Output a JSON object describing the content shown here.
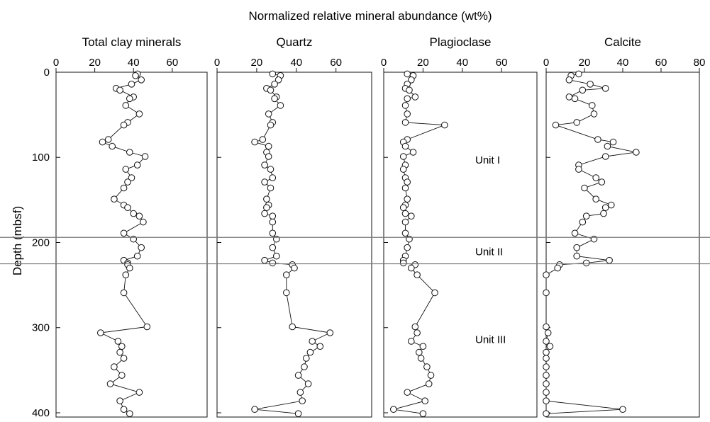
{
  "chart_data": {
    "type": "scatter",
    "title": "Normalized relative mineral abundance (wt%)",
    "ylabel": "Depth (mbsf)",
    "ylim": [
      0,
      405
    ],
    "y_ticks": [
      "0",
      "100",
      "200",
      "300",
      "400"
    ],
    "y_tick_values": [
      0,
      100,
      200,
      300,
      400
    ],
    "unit_boundaries": [
      194,
      225
    ],
    "unit_labels": [
      {
        "text": "Unit I",
        "depth": 103
      },
      {
        "text": "Unit II",
        "depth": 211
      },
      {
        "text": "Unit III",
        "depth": 314
      }
    ],
    "panels": [
      {
        "name": "Total clay minerals",
        "xlim": [
          0,
          78
        ],
        "x_ticks": [
          "0",
          "20",
          "40",
          "60"
        ],
        "x_tick_values": [
          0,
          20,
          40,
          60
        ],
        "depth": [
          2,
          4,
          9,
          14,
          19,
          21,
          29,
          31,
          39,
          49,
          59,
          62,
          79,
          82,
          87,
          94,
          99,
          109,
          114,
          124,
          129,
          136,
          149,
          156,
          159,
          166,
          169,
          176,
          189,
          196,
          206,
          216,
          221,
          224,
          226,
          230,
          238,
          259,
          299,
          306,
          316,
          322,
          329,
          336,
          346,
          356,
          366,
          376,
          386,
          396,
          401
        ],
        "values": [
          42,
          41,
          44,
          39,
          31,
          33,
          40,
          38,
          36,
          43,
          37,
          35,
          27,
          24,
          29,
          38,
          46,
          42,
          36,
          39,
          37,
          35,
          30,
          35,
          37,
          40,
          43,
          45,
          35,
          40,
          44,
          42,
          35,
          37,
          37,
          38,
          36,
          35,
          47,
          23,
          32,
          34,
          33,
          35,
          30,
          34,
          28,
          43,
          33,
          35,
          38
        ]
      },
      {
        "name": "Quartz",
        "xlim": [
          0,
          78
        ],
        "x_ticks": [
          "0",
          "20",
          "40",
          "60"
        ],
        "x_tick_values": [
          0,
          20,
          40,
          60
        ],
        "depth": [
          2,
          4,
          9,
          14,
          19,
          21,
          29,
          31,
          39,
          49,
          59,
          62,
          79,
          82,
          87,
          94,
          99,
          109,
          114,
          124,
          129,
          136,
          149,
          156,
          159,
          166,
          169,
          176,
          189,
          196,
          206,
          216,
          221,
          224,
          226,
          230,
          238,
          259,
          299,
          306,
          316,
          322,
          329,
          336,
          346,
          356,
          366,
          376,
          386,
          396,
          401
        ],
        "values": [
          28,
          32,
          31,
          29,
          25,
          27,
          30,
          29,
          32,
          26,
          28,
          27,
          23,
          19,
          26,
          25,
          26,
          24,
          27,
          28,
          24,
          27,
          25,
          26,
          25,
          24,
          28,
          28,
          28,
          30,
          28,
          30,
          24,
          28,
          38,
          39,
          35,
          35,
          38,
          57,
          48,
          52,
          47,
          45,
          44,
          41,
          46,
          42,
          43,
          19,
          41
        ]
      },
      {
        "name": "Plagioclase",
        "xlim": [
          0,
          78
        ],
        "x_ticks": [
          "0",
          "20",
          "40",
          "60"
        ],
        "x_tick_values": [
          0,
          20,
          40,
          60
        ],
        "depth": [
          2,
          4,
          9,
          14,
          19,
          21,
          29,
          31,
          39,
          49,
          59,
          62,
          79,
          82,
          87,
          94,
          99,
          109,
          114,
          124,
          129,
          136,
          149,
          156,
          159,
          166,
          169,
          176,
          189,
          196,
          206,
          216,
          221,
          224,
          226,
          230,
          238,
          259,
          299,
          306,
          316,
          322,
          329,
          336,
          346,
          356,
          366,
          376,
          386,
          396,
          401
        ],
        "values": [
          12,
          15,
          14,
          12,
          11,
          13,
          16,
          12,
          11,
          12,
          11,
          31,
          12,
          10,
          11,
          15,
          10,
          11,
          10,
          11,
          12,
          11,
          12,
          11,
          10,
          11,
          14,
          11,
          11,
          13,
          12,
          11,
          10,
          10,
          16,
          14,
          17,
          26,
          16,
          17,
          14,
          20,
          18,
          19,
          22,
          24,
          23,
          12,
          21,
          5,
          20
        ]
      },
      {
        "name": "Calcite",
        "xlim": [
          0,
          80
        ],
        "x_ticks": [
          "0",
          "20",
          "40",
          "60",
          "80"
        ],
        "x_tick_values": [
          0,
          20,
          40,
          60,
          80
        ],
        "depth": [
          2,
          4,
          9,
          14,
          19,
          21,
          29,
          31,
          39,
          49,
          59,
          62,
          79,
          82,
          87,
          94,
          99,
          109,
          114,
          124,
          129,
          136,
          149,
          156,
          159,
          166,
          169,
          176,
          189,
          196,
          206,
          216,
          221,
          224,
          226,
          230,
          238,
          259,
          299,
          306,
          316,
          322,
          329,
          336,
          346,
          356,
          366,
          376,
          386,
          396,
          401
        ],
        "values": [
          17,
          13,
          12,
          23,
          31,
          19,
          12,
          15,
          24,
          25,
          16,
          5,
          27,
          35,
          32,
          47,
          31,
          17,
          17,
          26,
          29,
          20,
          26,
          34,
          31,
          30,
          21,
          19,
          15,
          25,
          16,
          16,
          33,
          21,
          7,
          6,
          0,
          0,
          0,
          1,
          0,
          2,
          0,
          0,
          0,
          0,
          0,
          0,
          0,
          40,
          0
        ]
      }
    ]
  }
}
